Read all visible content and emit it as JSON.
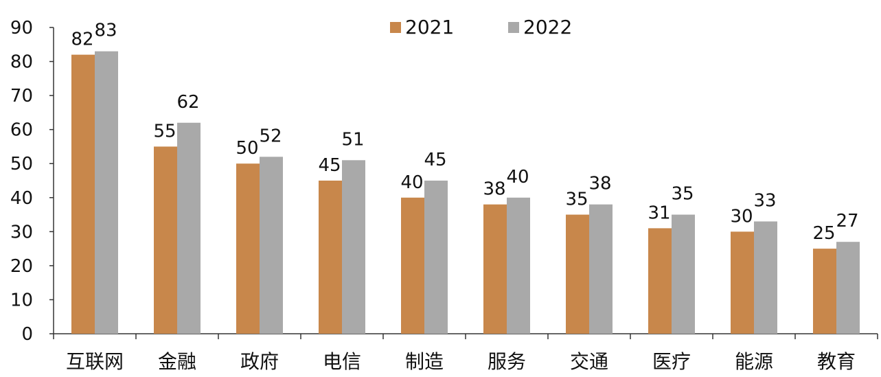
{
  "chart_data": {
    "type": "bar",
    "categories": [
      "互联网",
      "金融",
      "政府",
      "电信",
      "制造",
      "服务",
      "交通",
      "医疗",
      "能源",
      "教育"
    ],
    "series": [
      {
        "name": "2021",
        "color": "#C8874B",
        "values": [
          82,
          55,
          50,
          45,
          40,
          38,
          35,
          31,
          30,
          25
        ]
      },
      {
        "name": "2022",
        "color": "#A9A9A9",
        "values": [
          83,
          62,
          52,
          51,
          45,
          40,
          38,
          35,
          33,
          27
        ]
      }
    ],
    "ylim": [
      0,
      90
    ],
    "yticks": [
      0,
      10,
      20,
      30,
      40,
      50,
      60,
      70,
      80,
      90
    ],
    "legend": "top-center",
    "grid": false,
    "title": "",
    "xlabel": "",
    "ylabel": ""
  }
}
